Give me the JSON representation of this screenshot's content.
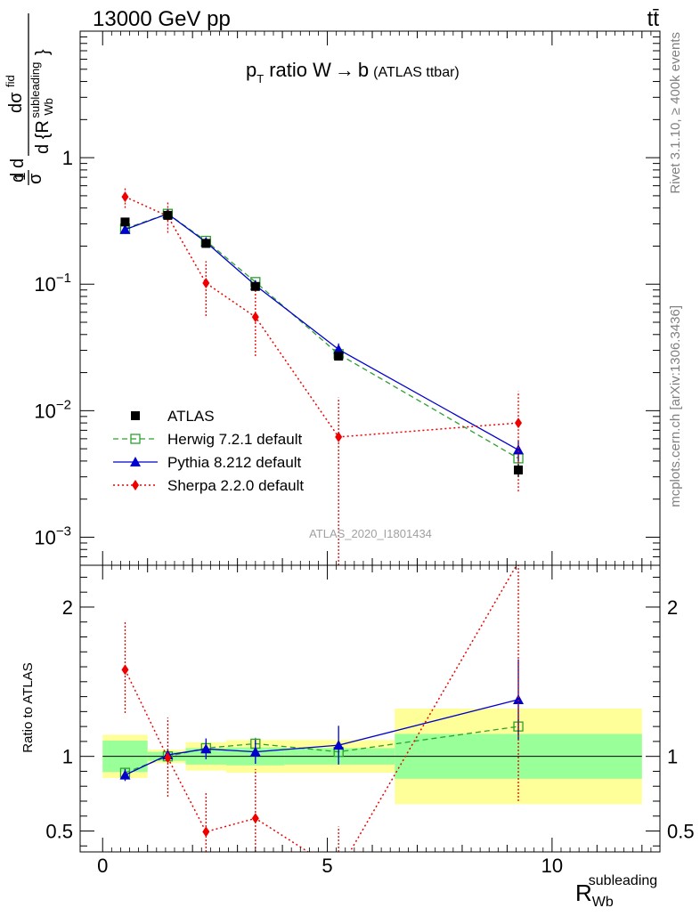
{
  "header": {
    "left": "13000 GeV pp",
    "right": "tt̄"
  },
  "chart_data": [
    {
      "type": "line",
      "title": "p_T ratio W → b (ATLAS ttbar)",
      "title_parts": {
        "p": "p",
        "sub": "T",
        "rest": "ratio W",
        "arrow": "→",
        "b": "b",
        "paren": "(ATLAS ttbar)"
      },
      "ylabel": "1/σ dσ/d(R_Wb subleading)",
      "ylabel_parts": {
        "d1": "d",
        "sigma": "σ",
        "one": "1",
        "d2": "d",
        "dsig": "dσ",
        "fid": "fid",
        "bottom": "d {R",
        "sub": "Wb",
        "sup": "subleading",
        "close": "}"
      },
      "yscale": "log",
      "ylim": [
        0.0006,
        10
      ],
      "xlim": [
        -0.5,
        12.4
      ],
      "yticks": [
        {
          "value": 1,
          "base": "1",
          "exp": ""
        },
        {
          "value": 0.1,
          "base": "10",
          "exp": "−1"
        },
        {
          "value": 0.01,
          "base": "10",
          "exp": "−2"
        },
        {
          "value": 0.001,
          "base": "10",
          "exp": "−3"
        }
      ],
      "legend_position": "bottom-left",
      "series": [
        {
          "name": "ATLAS",
          "color": "#000000",
          "marker": "square-filled",
          "line": "none",
          "x": [
            0.5,
            1.45,
            2.3,
            3.4,
            5.25,
            9.25
          ],
          "y": [
            0.31,
            0.35,
            0.21,
            0.096,
            0.027,
            0.0034
          ],
          "yerr_low": [
            0.02,
            0.02,
            0.015,
            0.006,
            0.0015,
            0.0004
          ],
          "yerr_high": [
            0.02,
            0.02,
            0.015,
            0.006,
            0.0015,
            0.0004
          ]
        },
        {
          "name": "Herwig 7.2.1 default",
          "color": "#2ca02c",
          "marker": "square-open",
          "line": "dashed",
          "x": [
            0.5,
            1.45,
            2.3,
            3.4,
            5.25,
            9.25
          ],
          "y": [
            0.275,
            0.36,
            0.22,
            0.104,
            0.028,
            0.0042
          ],
          "yerr_low": [
            0.01,
            0.01,
            0.008,
            0.004,
            0.0012,
            0.0004
          ],
          "yerr_high": [
            0.01,
            0.01,
            0.008,
            0.004,
            0.0012,
            0.0004
          ]
        },
        {
          "name": "Pythia 8.212 default",
          "color": "#0000cc",
          "marker": "triangle",
          "line": "solid",
          "x": [
            0.5,
            1.45,
            2.3,
            3.4,
            5.25,
            9.25
          ],
          "y": [
            0.27,
            0.36,
            0.215,
            0.098,
            0.0305,
            0.0049
          ],
          "yerr_low": [
            0.012,
            0.014,
            0.015,
            0.009,
            0.0035,
            0.0009
          ],
          "yerr_high": [
            0.012,
            0.014,
            0.015,
            0.009,
            0.0035,
            0.0009
          ]
        },
        {
          "name": "Sherpa 2.2.0 default",
          "color": "#ee0000",
          "marker": "diamond",
          "line": "dotted",
          "x": [
            0.5,
            1.45,
            2.3,
            3.4,
            5.25,
            9.25
          ],
          "y": [
            0.49,
            0.345,
            0.102,
            0.055,
            0.0062,
            0.008
          ],
          "yerr_low": [
            0.09,
            0.09,
            0.046,
            0.028,
            0.0056,
            0.0057
          ],
          "yerr_high": [
            0.1,
            0.1,
            0.05,
            0.035,
            0.0065,
            0.0062
          ]
        }
      ],
      "watermark": "ATLAS_2020_I1801434"
    },
    {
      "type": "line",
      "ylabel": "Ratio to ATLAS",
      "xlabel": "R_Wb subleading",
      "xlabel_parts": {
        "main": "R",
        "sub": "Wb",
        "sup": "subleading"
      },
      "ylim": [
        0.36,
        2.28
      ],
      "xlim": [
        -0.5,
        12.4
      ],
      "xticks": [
        {
          "value": 0,
          "label": "0"
        },
        {
          "value": 5,
          "label": "5"
        },
        {
          "value": 10,
          "label": "10"
        }
      ],
      "yticks": [
        {
          "value": 0.5,
          "label": "0.5"
        },
        {
          "value": 1,
          "label": "1"
        },
        {
          "value": 2,
          "label": "2"
        }
      ],
      "bands": [
        {
          "x0": 0.0,
          "x1": 1.0,
          "yellow": [
            0.855,
            1.145
          ],
          "green": [
            0.895,
            1.105
          ]
        },
        {
          "x0": 1.0,
          "x1": 1.85,
          "yellow": [
            0.955,
            1.045
          ],
          "green": [
            0.97,
            1.03
          ]
        },
        {
          "x0": 1.85,
          "x1": 2.75,
          "yellow": [
            0.905,
            1.095
          ],
          "green": [
            0.945,
            1.055
          ]
        },
        {
          "x0": 2.75,
          "x1": 4.05,
          "yellow": [
            0.89,
            1.11
          ],
          "green": [
            0.94,
            1.06
          ]
        },
        {
          "x0": 4.05,
          "x1": 6.5,
          "yellow": [
            0.89,
            1.11
          ],
          "green": [
            0.945,
            1.055
          ]
        },
        {
          "x0": 6.5,
          "x1": 12.0,
          "yellow": [
            0.68,
            1.32
          ],
          "green": [
            0.85,
            1.15
          ]
        }
      ],
      "series": [
        {
          "name": "Herwig 7.2.1 default",
          "color": "#2ca02c",
          "marker": "square-open",
          "line": "dashed",
          "x": [
            0.5,
            1.45,
            2.3,
            3.4,
            5.25,
            9.25
          ],
          "y": [
            0.89,
            1.0,
            1.055,
            1.085,
            1.03,
            1.2
          ],
          "yerr_low": [
            0.03,
            0.03,
            0.035,
            0.04,
            0.04,
            0.05
          ],
          "yerr_high": [
            0.03,
            0.03,
            0.035,
            0.04,
            0.04,
            0.05
          ]
        },
        {
          "name": "Pythia 8.212 default",
          "color": "#0000cc",
          "marker": "triangle",
          "line": "solid",
          "x": [
            0.5,
            1.45,
            2.3,
            3.4,
            5.25,
            9.25
          ],
          "y": [
            0.875,
            1.01,
            1.05,
            1.03,
            1.075,
            1.38
          ],
          "yerr_low": [
            0.04,
            0.04,
            0.07,
            0.08,
            0.13,
            0.27
          ],
          "yerr_high": [
            0.04,
            0.04,
            0.07,
            0.08,
            0.13,
            0.27
          ]
        },
        {
          "name": "Sherpa 2.2.0 default",
          "color": "#ee0000",
          "marker": "diamond",
          "line": "dotted",
          "x": [
            0.5,
            1.45,
            2.3,
            3.4,
            5.25,
            9.25
          ],
          "y": [
            1.58,
            0.99,
            0.495,
            0.585,
            0.23,
            2.3
          ],
          "yerr_low": [
            0.29,
            0.26,
            0.22,
            0.29,
            0.2,
            1.6
          ],
          "yerr_high": [
            0.32,
            0.27,
            0.27,
            0.33,
            0.3,
            1.7
          ]
        }
      ]
    }
  ],
  "side_text": {
    "rivet": "Rivet 3.1.10, ≥ 400k events",
    "mcplots": "mcplots.cern.ch [arXiv:1306.3436]"
  }
}
